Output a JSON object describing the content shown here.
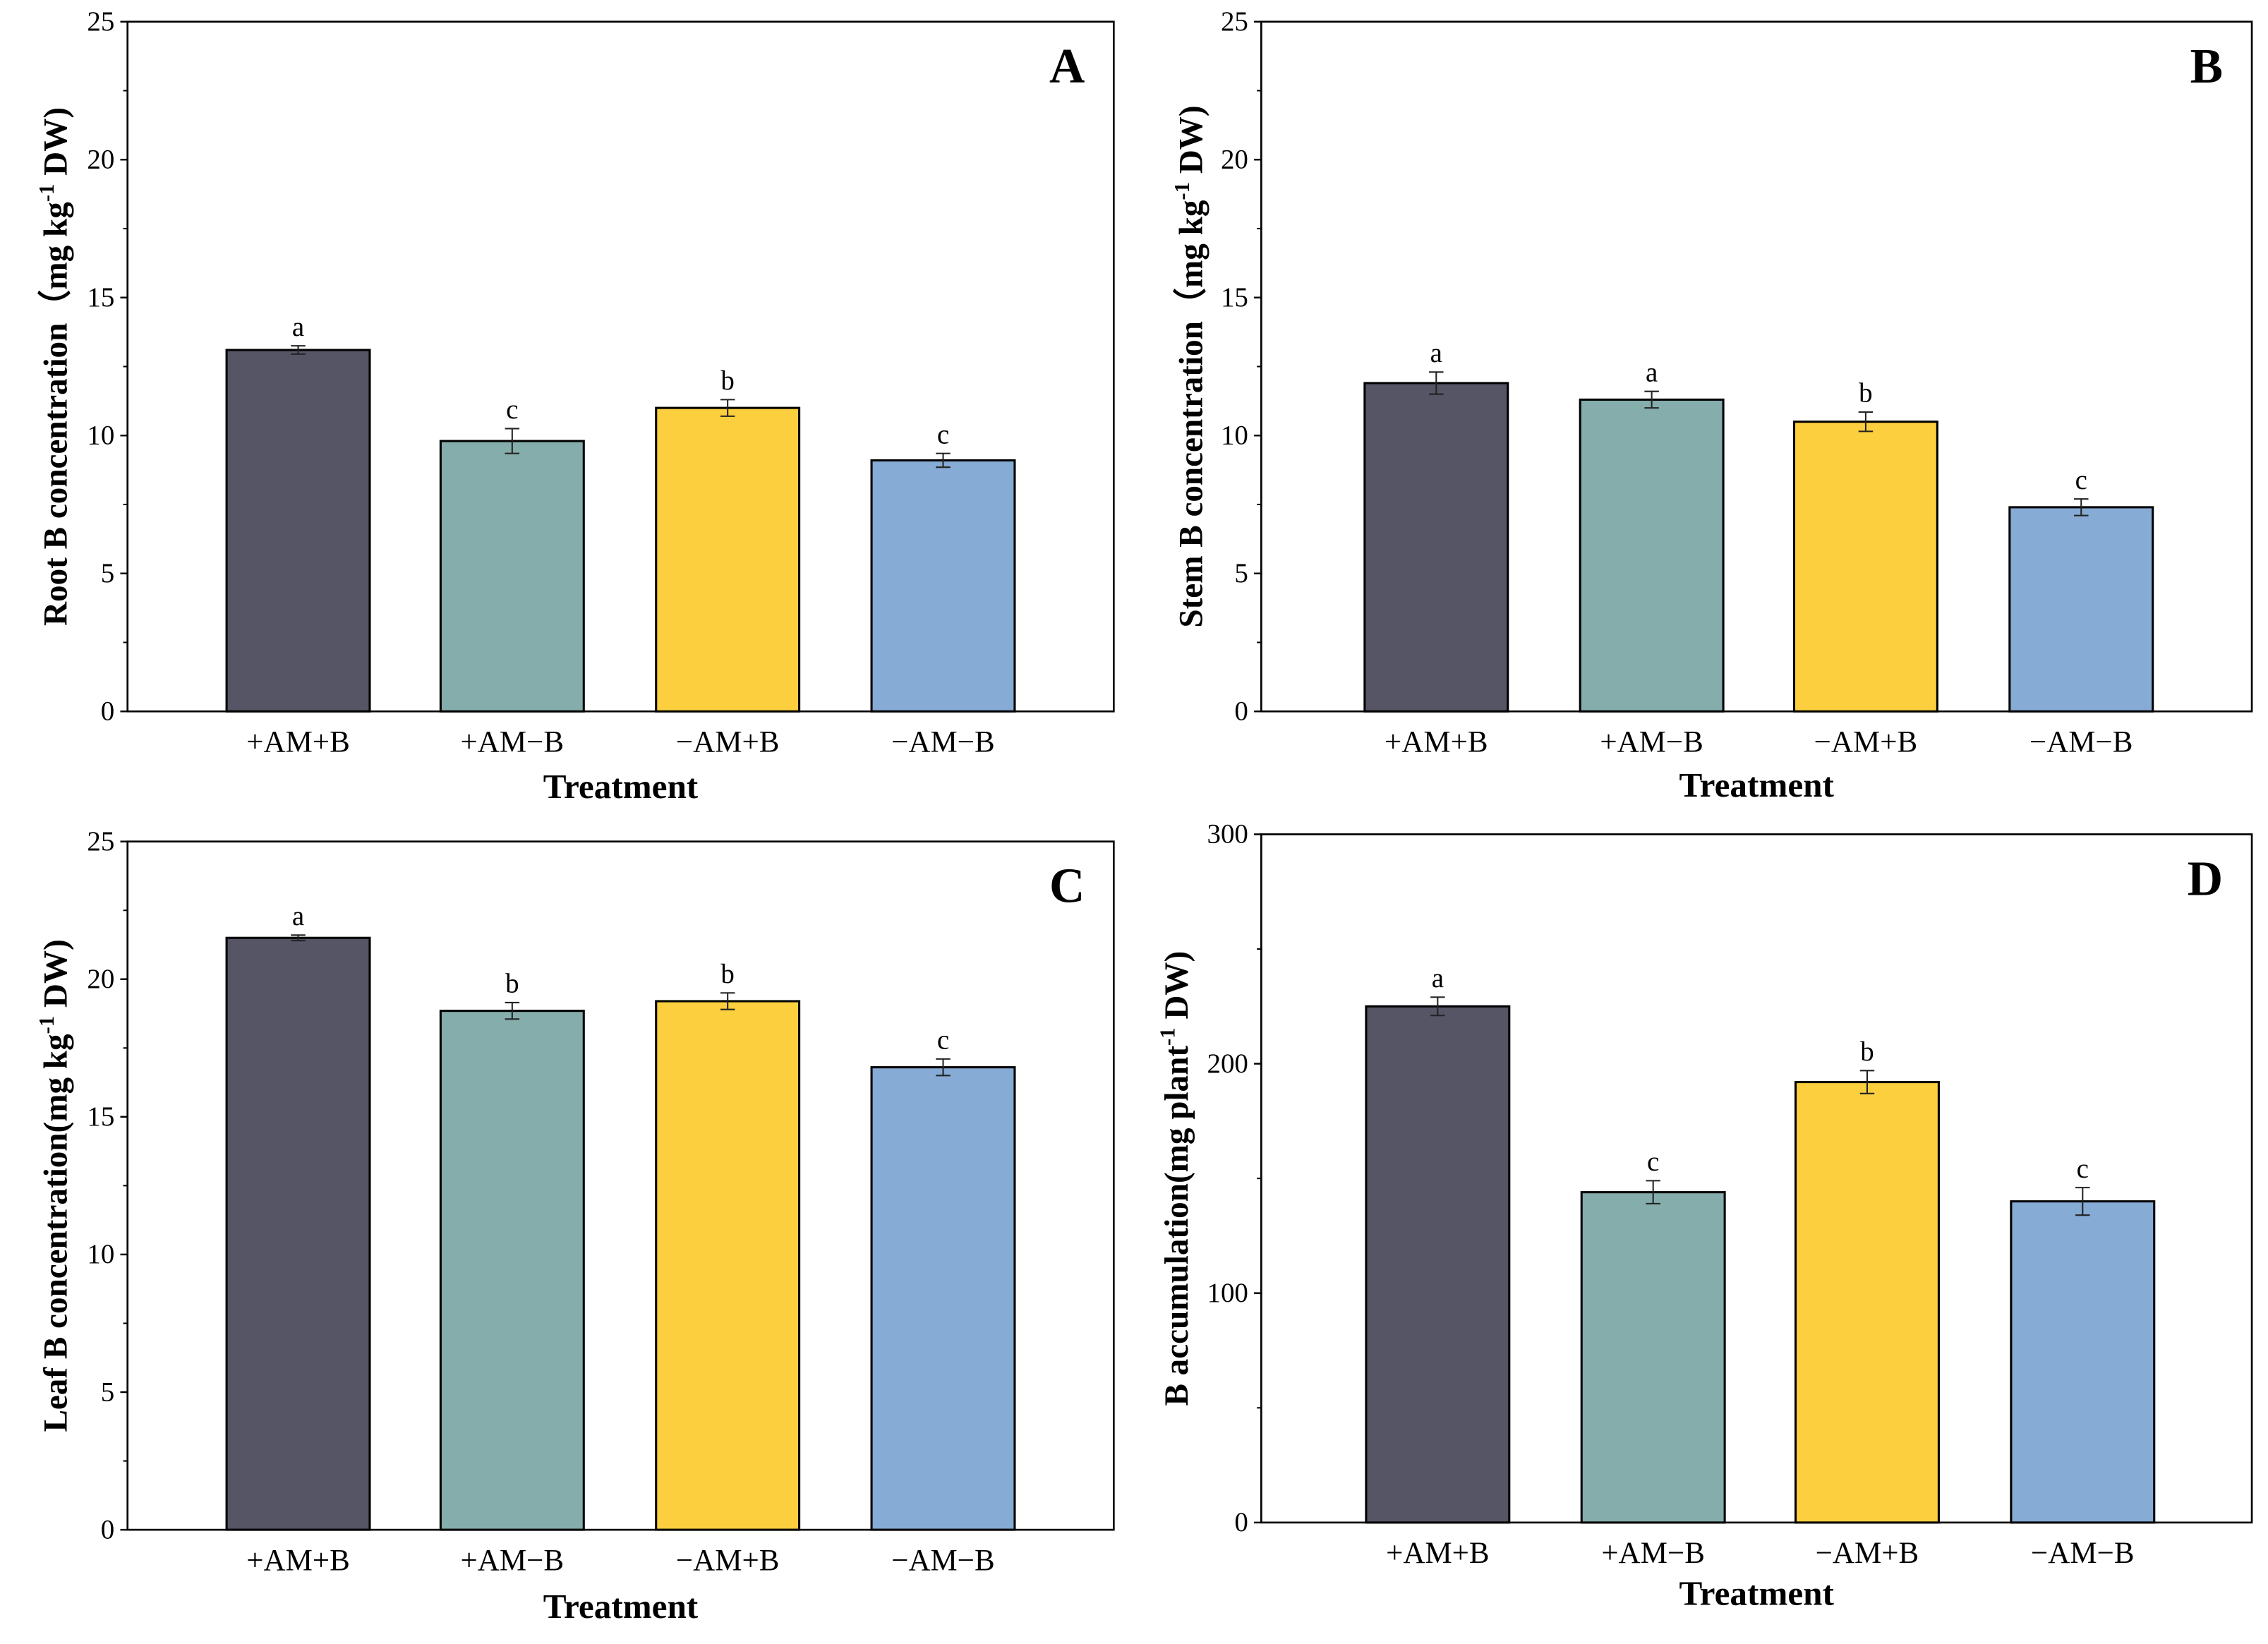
{
  "chart_data": [
    {
      "type": "bar",
      "panel": "A",
      "ylabel": "Root B concentration (mg kg-1 DW)",
      "ylabel_parts": [
        "Root B concentration（mg kg",
        "-1",
        "  DW)"
      ],
      "xlabel": "Treatment",
      "categories": [
        "+AM+B",
        "+AM−B",
        "−AM+B",
        "−AM−B"
      ],
      "values": [
        13.1,
        9.8,
        11.0,
        9.1
      ],
      "errors": [
        0.15,
        0.45,
        0.3,
        0.25
      ],
      "letters": [
        "a",
        "c",
        "b",
        "c"
      ],
      "ylim": [
        0,
        25
      ],
      "yticks": [
        0,
        5,
        10,
        15,
        20,
        25
      ]
    },
    {
      "type": "bar",
      "panel": "B",
      "ylabel": "Stem B concentration (mg kg-1 DW)",
      "ylabel_parts": [
        "Stem B concentration（mg kg",
        "-1",
        "  DW)"
      ],
      "xlabel": "Treatment",
      "categories": [
        "+AM+B",
        "+AM−B",
        "−AM+B",
        "−AM−B"
      ],
      "values": [
        11.9,
        11.3,
        10.5,
        7.4
      ],
      "errors": [
        0.4,
        0.3,
        0.35,
        0.3
      ],
      "letters": [
        "a",
        "a",
        "b",
        "c"
      ],
      "ylim": [
        0,
        25
      ],
      "yticks": [
        0,
        5,
        10,
        15,
        20,
        25
      ]
    },
    {
      "type": "bar",
      "panel": "C",
      "ylabel": "Leaf B concentration(mg kg-1 DW)",
      "ylabel_parts": [
        "Leaf B concentration(mg kg",
        "-1",
        "  DW)"
      ],
      "xlabel": "Treatment",
      "categories": [
        "+AM+B",
        "+AM−B",
        "−AM+B",
        "−AM−B"
      ],
      "values": [
        21.5,
        18.85,
        19.2,
        16.8
      ],
      "errors": [
        0.1,
        0.3,
        0.3,
        0.3
      ],
      "letters": [
        "a",
        "b",
        "b",
        "c"
      ],
      "ylim": [
        0,
        25
      ],
      "yticks": [
        0,
        5,
        10,
        15,
        20,
        25
      ]
    },
    {
      "type": "bar",
      "panel": "D",
      "ylabel": "B accumulation(mg plant-1 DW)",
      "ylabel_parts": [
        "B accumulation(mg plant",
        "-1",
        "  DW)"
      ],
      "xlabel": "Treatment",
      "categories": [
        "+AM+B",
        "+AM−B",
        "−AM+B",
        "−AM−B"
      ],
      "values": [
        225,
        144,
        192,
        140
      ],
      "errors": [
        4,
        5,
        5,
        6
      ],
      "letters": [
        "a",
        "c",
        "b",
        "c"
      ],
      "ylim": [
        0,
        300
      ],
      "yticks": [
        0,
        100,
        200,
        300
      ]
    }
  ],
  "colors": [
    "#555565",
    "#85ADAC",
    "#FCCF3E",
    "#86ABD5"
  ]
}
